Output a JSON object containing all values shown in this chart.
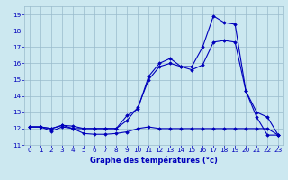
{
  "background_color": "#cce8f0",
  "plot_bg_color": "#cce8f0",
  "line_color": "#0000bb",
  "grid_color": "#99bbcc",
  "xlabel": "Graphe des températures (°c)",
  "xlabel_color": "#0000bb",
  "ylabel_color": "#0000bb",
  "xlim": [
    -0.5,
    23.5
  ],
  "ylim": [
    11,
    19.5
  ],
  "yticks": [
    11,
    12,
    13,
    14,
    15,
    16,
    17,
    18,
    19
  ],
  "xticks": [
    0,
    1,
    2,
    3,
    4,
    5,
    6,
    7,
    8,
    9,
    10,
    11,
    12,
    13,
    14,
    15,
    16,
    17,
    18,
    19,
    20,
    21,
    22,
    23
  ],
  "line1_x": [
    0,
    1,
    2,
    3,
    4,
    5,
    6,
    7,
    8,
    9,
    10,
    11,
    12,
    13,
    14,
    15,
    16,
    17,
    18,
    19,
    20,
    21,
    22,
    23
  ],
  "line1_y": [
    12.1,
    12.1,
    11.85,
    12.1,
    12.0,
    11.7,
    11.65,
    11.65,
    11.7,
    11.8,
    12.0,
    12.1,
    12.0,
    12.0,
    12.0,
    12.0,
    12.0,
    12.0,
    12.0,
    12.0,
    12.0,
    12.0,
    12.0,
    11.6
  ],
  "line2_x": [
    0,
    1,
    2,
    3,
    4,
    5,
    6,
    7,
    8,
    9,
    10,
    11,
    12,
    13,
    14,
    15,
    16,
    17,
    18,
    19,
    20,
    21,
    22,
    23
  ],
  "line2_y": [
    12.1,
    12.1,
    12.0,
    12.2,
    12.15,
    12.0,
    12.0,
    12.0,
    12.0,
    12.5,
    13.3,
    15.0,
    15.8,
    16.0,
    15.8,
    15.6,
    15.9,
    17.3,
    17.4,
    17.3,
    14.3,
    12.7,
    11.6,
    11.6
  ],
  "line3_x": [
    0,
    1,
    2,
    3,
    4,
    5,
    6,
    7,
    8,
    9,
    10,
    11,
    12,
    13,
    14,
    15,
    16,
    17,
    18,
    19,
    20,
    21,
    22,
    23
  ],
  "line3_y": [
    12.1,
    12.1,
    12.0,
    12.2,
    12.0,
    12.0,
    12.0,
    12.0,
    12.0,
    12.8,
    13.2,
    15.2,
    16.0,
    16.3,
    15.8,
    15.8,
    17.0,
    18.9,
    18.5,
    18.4,
    14.3,
    13.0,
    12.7,
    11.6
  ],
  "marker": "D",
  "markersize": 1.8,
  "linewidth": 0.8,
  "xlabel_fontsize": 6.0,
  "tick_fontsize": 5.2
}
